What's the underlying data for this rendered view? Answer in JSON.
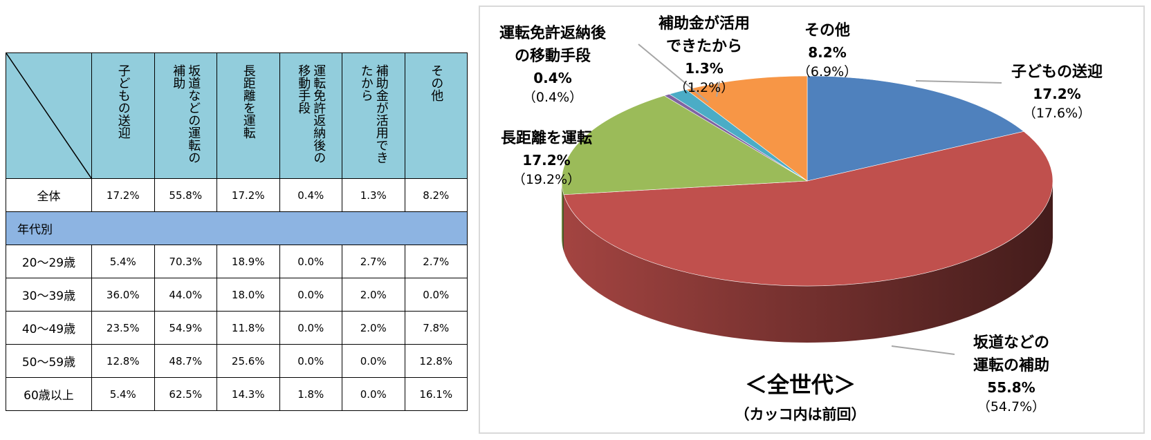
{
  "table": {
    "columns": [
      "子どもの送迎",
      "坂道などの運転の補助",
      "長距離を運転",
      "運転免許返納後の移動手段",
      "補助金が活用できたから",
      "その他"
    ],
    "total_row": {
      "label": "全体",
      "cells": [
        "17.2%",
        "55.8%",
        "17.2%",
        "0.4%",
        "1.3%",
        "8.2%"
      ]
    },
    "section": "年代別",
    "rows": [
      {
        "label": "20～29歳",
        "cells": [
          "5.4%",
          "70.3%",
          "18.9%",
          "0.0%",
          "2.7%",
          "2.7%"
        ]
      },
      {
        "label": "30～39歳",
        "cells": [
          "36.0%",
          "44.0%",
          "18.0%",
          "0.0%",
          "2.0%",
          "0.0%"
        ]
      },
      {
        "label": "40～49歳",
        "cells": [
          "23.5%",
          "54.9%",
          "11.8%",
          "0.0%",
          "2.0%",
          "7.8%"
        ]
      },
      {
        "label": "50～59歳",
        "cells": [
          "12.8%",
          "48.7%",
          "25.6%",
          "0.0%",
          "0.0%",
          "12.8%"
        ]
      },
      {
        "label": "60歳以上",
        "cells": [
          "5.4%",
          "62.5%",
          "14.3%",
          "1.8%",
          "0.0%",
          "16.1%"
        ]
      }
    ]
  },
  "chart_data": {
    "type": "pie",
    "title": "＜全世代＞",
    "subtitle": "（カッコ内は前回）",
    "categories": [
      "子どもの送迎",
      "坂道などの運転の補助",
      "長距離を運転",
      "運転免許返納後の移動手段",
      "補助金が活用できたから",
      "その他"
    ],
    "values": [
      17.2,
      55.8,
      17.2,
      0.4,
      1.3,
      8.2
    ],
    "value_labels": [
      "17.2%",
      "55.8%",
      "17.2%",
      "0.4%",
      "1.3%",
      "8.2%"
    ],
    "previous_labels": [
      "（17.6%）",
      "（54.7%）",
      "（19.2%）",
      "（0.4%）",
      "（1.2%）",
      "（6.9%）"
    ],
    "colors": [
      "#4f81bd",
      "#c0504d",
      "#9bbb59",
      "#8064a2",
      "#4bacc6",
      "#f79646"
    ]
  }
}
